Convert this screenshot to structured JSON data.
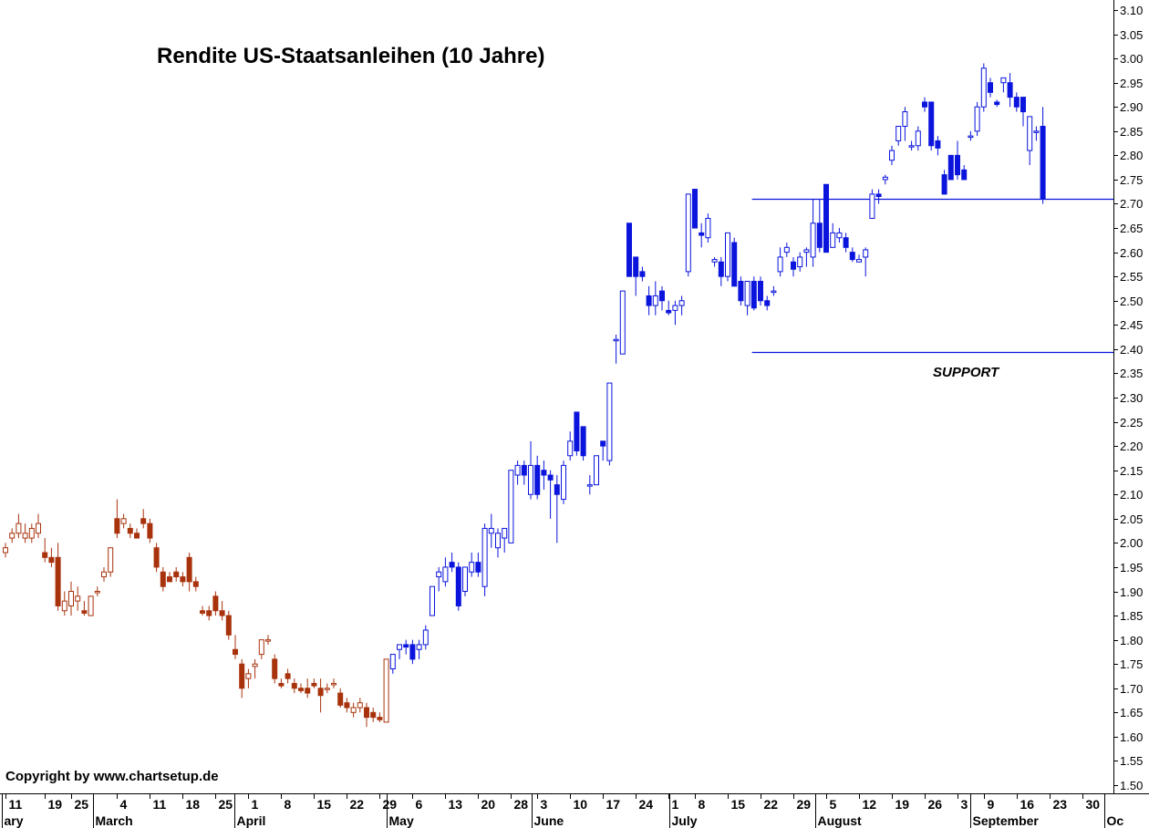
{
  "chart_data": {
    "type": "candlestick",
    "title": "Rendite US-Staatsanleihen  (10 Jahre)",
    "copyright": "Copyright by www.chartsetup.de",
    "annotation": "SUPPORT",
    "ylim": [
      1.5,
      3.1
    ],
    "y_ticks": [
      "1.50",
      "1.55",
      "1.60",
      "1.65",
      "1.70",
      "1.75",
      "1.80",
      "1.85",
      "1.90",
      "1.95",
      "2.00",
      "2.05",
      "2.10",
      "2.15",
      "2.20",
      "2.25",
      "2.30",
      "2.35",
      "2.40",
      "2.45",
      "2.50",
      "2.55",
      "2.60",
      "2.65",
      "2.70",
      "2.75",
      "2.80",
      "2.85",
      "2.90",
      "2.95",
      "3.00",
      "3.05",
      "3.10"
    ],
    "x_ticks": [
      {
        "label": "11",
        "day": 0
      },
      {
        "label": "19",
        "day": 6
      },
      {
        "label": "25",
        "day": 10
      },
      {
        "label": "4",
        "day": 17
      },
      {
        "label": "11",
        "day": 22
      },
      {
        "label": "18",
        "day": 27
      },
      {
        "label": "25",
        "day": 32
      },
      {
        "label": "1",
        "day": 37
      },
      {
        "label": "8",
        "day": 42
      },
      {
        "label": "15",
        "day": 47
      },
      {
        "label": "22",
        "day": 52
      },
      {
        "label": "29",
        "day": 57
      },
      {
        "label": "6",
        "day": 62
      },
      {
        "label": "13",
        "day": 67
      },
      {
        "label": "20",
        "day": 72
      },
      {
        "label": "28",
        "day": 77
      },
      {
        "label": "3",
        "day": 81
      },
      {
        "label": "10",
        "day": 86
      },
      {
        "label": "17",
        "day": 91
      },
      {
        "label": "24",
        "day": 96
      },
      {
        "label": "1",
        "day": 101
      },
      {
        "label": "8",
        "day": 105
      },
      {
        "label": "15",
        "day": 110
      },
      {
        "label": "22",
        "day": 115
      },
      {
        "label": "29",
        "day": 120
      },
      {
        "label": "5",
        "day": 125
      },
      {
        "label": "12",
        "day": 130
      },
      {
        "label": "19",
        "day": 135
      },
      {
        "label": "26",
        "day": 140
      },
      {
        "label": "3",
        "day": 145
      },
      {
        "label": "9",
        "day": 149
      },
      {
        "label": "16",
        "day": 154
      },
      {
        "label": "23",
        "day": 159
      },
      {
        "label": "30",
        "day": 164
      }
    ],
    "months": [
      {
        "label": "ary",
        "day": -0.6
      },
      {
        "label": "March",
        "day": 13.3
      },
      {
        "label": "April",
        "day": 34.9
      },
      {
        "label": "May",
        "day": 58.1
      },
      {
        "label": "June",
        "day": 80.2
      },
      {
        "label": "July",
        "day": 101.1
      },
      {
        "label": "August",
        "day": 123.4
      },
      {
        "label": "September",
        "day": 146.9
      },
      {
        "label": "Oc",
        "day": 167.4
      }
    ],
    "x_domain": [
      -1,
      168.5
    ],
    "hlines": [
      {
        "value": 2.71,
        "from_day": 113.7,
        "to_day": 168.5
      },
      {
        "value": 2.395,
        "from_day": 113.7,
        "to_day": 168.5
      }
    ],
    "colors": {
      "up": "#0a14dc",
      "down": "#0a14dc",
      "pre_may_down": "#a8320c",
      "pre_may_up": "#a8320c",
      "axis": "#000000",
      "line": "#0a14dc"
    },
    "color_switch_day": 59,
    "candles": [
      [
        0,
        1.98,
        2.0,
        1.97,
        1.99
      ],
      [
        1,
        2.01,
        2.03,
        2.0,
        2.02
      ],
      [
        2,
        2.02,
        2.06,
        2.01,
        2.04
      ],
      [
        3,
        2.01,
        2.04,
        2.0,
        2.02
      ],
      [
        4,
        2.01,
        2.04,
        2.0,
        2.03
      ],
      [
        5,
        2.02,
        2.06,
        2.01,
        2.04
      ],
      [
        6,
        1.98,
        2.01,
        1.96,
        1.97
      ],
      [
        7,
        1.97,
        1.99,
        1.95,
        1.96
      ],
      [
        8,
        1.97,
        2.0,
        1.86,
        1.87
      ],
      [
        9,
        1.86,
        1.9,
        1.85,
        1.88
      ],
      [
        10,
        1.87,
        1.92,
        1.85,
        1.9
      ],
      [
        11,
        1.88,
        1.91,
        1.86,
        1.89
      ],
      [
        12,
        1.86,
        1.88,
        1.85,
        1.855
      ],
      [
        13,
        1.85,
        1.89,
        1.85,
        1.89
      ],
      [
        14,
        1.9,
        1.91,
        1.89,
        1.9
      ],
      [
        15,
        1.93,
        1.95,
        1.92,
        1.94
      ],
      [
        16,
        1.94,
        1.99,
        1.93,
        1.99
      ],
      [
        17,
        2.05,
        2.09,
        2.01,
        2.02
      ],
      [
        18,
        2.04,
        2.06,
        2.03,
        2.05
      ],
      [
        19,
        2.03,
        2.04,
        2.01,
        2.02
      ],
      [
        20,
        2.02,
        2.03,
        2.01,
        2.01
      ],
      [
        21,
        2.05,
        2.07,
        2.03,
        2.04
      ],
      [
        22,
        2.04,
        2.05,
        2.0,
        2.01
      ],
      [
        23,
        1.99,
        2.0,
        1.94,
        1.95
      ],
      [
        24,
        1.94,
        1.95,
        1.9,
        1.91
      ],
      [
        25,
        1.93,
        1.94,
        1.92,
        1.92
      ],
      [
        26,
        1.94,
        1.95,
        1.92,
        1.93
      ],
      [
        27,
        1.93,
        1.94,
        1.91,
        1.92
      ],
      [
        28,
        1.97,
        1.98,
        1.9,
        1.92
      ],
      [
        29,
        1.92,
        1.93,
        1.9,
        1.91
      ],
      [
        30,
        1.86,
        1.87,
        1.85,
        1.855
      ],
      [
        31,
        1.86,
        1.87,
        1.84,
        1.85
      ],
      [
        32,
        1.89,
        1.9,
        1.85,
        1.86
      ],
      [
        33,
        1.86,
        1.88,
        1.84,
        1.85
      ],
      [
        34,
        1.85,
        1.86,
        1.8,
        1.81
      ],
      [
        35,
        1.78,
        1.81,
        1.76,
        1.77
      ],
      [
        36,
        1.75,
        1.76,
        1.68,
        1.7
      ],
      [
        37,
        1.72,
        1.74,
        1.7,
        1.73
      ],
      [
        38,
        1.745,
        1.76,
        1.72,
        1.75
      ],
      [
        39,
        1.77,
        1.8,
        1.76,
        1.8
      ],
      [
        40,
        1.8,
        1.81,
        1.79,
        1.8
      ],
      [
        41,
        1.76,
        1.77,
        1.71,
        1.72
      ],
      [
        42,
        1.71,
        1.72,
        1.7,
        1.705
      ],
      [
        43,
        1.73,
        1.74,
        1.71,
        1.72
      ],
      [
        44,
        1.71,
        1.72,
        1.69,
        1.7
      ],
      [
        45,
        1.7,
        1.71,
        1.69,
        1.695
      ],
      [
        46,
        1.7,
        1.72,
        1.68,
        1.69
      ],
      [
        47,
        1.71,
        1.72,
        1.7,
        1.705
      ],
      [
        48,
        1.7,
        1.72,
        1.65,
        1.685
      ],
      [
        49,
        1.7,
        1.71,
        1.69,
        1.7
      ],
      [
        50,
        1.71,
        1.72,
        1.7,
        1.71
      ],
      [
        51,
        1.69,
        1.7,
        1.66,
        1.665
      ],
      [
        52,
        1.67,
        1.68,
        1.65,
        1.66
      ],
      [
        53,
        1.65,
        1.67,
        1.64,
        1.66
      ],
      [
        54,
        1.66,
        1.68,
        1.65,
        1.67
      ],
      [
        55,
        1.66,
        1.67,
        1.62,
        1.64
      ],
      [
        56,
        1.65,
        1.66,
        1.63,
        1.64
      ],
      [
        57,
        1.64,
        1.65,
        1.63,
        1.635
      ],
      [
        58,
        1.63,
        1.76,
        1.63,
        1.76
      ],
      [
        59,
        1.74,
        1.77,
        1.73,
        1.77
      ],
      [
        60,
        1.78,
        1.79,
        1.76,
        1.79
      ],
      [
        61,
        1.79,
        1.8,
        1.77,
        1.785
      ],
      [
        62,
        1.79,
        1.8,
        1.75,
        1.76
      ],
      [
        63,
        1.78,
        1.8,
        1.76,
        1.79
      ],
      [
        64,
        1.79,
        1.83,
        1.78,
        1.82
      ],
      [
        65,
        1.85,
        1.91,
        1.85,
        1.91
      ],
      [
        66,
        1.93,
        1.95,
        1.9,
        1.94
      ],
      [
        67,
        1.92,
        1.97,
        1.91,
        1.95
      ],
      [
        68,
        1.96,
        1.98,
        1.94,
        1.95
      ],
      [
        69,
        1.95,
        1.96,
        1.86,
        1.87
      ],
      [
        70,
        1.9,
        1.95,
        1.89,
        1.95
      ],
      [
        71,
        1.94,
        1.98,
        1.93,
        1.96
      ],
      [
        72,
        1.96,
        1.98,
        1.93,
        1.94
      ],
      [
        73,
        1.91,
        2.04,
        1.89,
        2.03
      ],
      [
        74,
        2.02,
        2.06,
        1.99,
        2.03
      ],
      [
        75,
        1.99,
        2.03,
        1.97,
        2.02
      ],
      [
        76,
        2.01,
        2.03,
        1.98,
        2.03
      ],
      [
        77,
        2.0,
        2.15,
        2.0,
        2.15
      ],
      [
        78,
        2.14,
        2.17,
        2.12,
        2.16
      ],
      [
        79,
        2.16,
        2.17,
        2.12,
        2.14
      ],
      [
        80,
        2.1,
        2.21,
        2.09,
        2.16
      ],
      [
        81,
        2.16,
        2.18,
        2.09,
        2.1
      ],
      [
        82,
        2.15,
        2.17,
        2.11,
        2.14
      ],
      [
        83,
        2.14,
        2.15,
        2.05,
        2.13
      ],
      [
        84,
        2.12,
        2.14,
        2.0,
        2.1
      ],
      [
        85,
        2.09,
        2.17,
        2.08,
        2.16
      ],
      [
        86,
        2.18,
        2.23,
        2.17,
        2.21
      ],
      [
        87,
        2.27,
        2.27,
        2.18,
        2.19
      ],
      [
        88,
        2.24,
        2.24,
        2.17,
        2.18
      ],
      [
        89,
        2.12,
        2.14,
        2.1,
        2.12
      ],
      [
        90,
        2.12,
        2.18,
        2.12,
        2.18
      ],
      [
        91,
        2.21,
        2.21,
        2.17,
        2.2
      ],
      [
        92,
        2.17,
        2.33,
        2.16,
        2.33
      ],
      [
        93,
        2.42,
        2.43,
        2.37,
        2.42
      ],
      [
        94,
        2.39,
        2.52,
        2.39,
        2.52
      ],
      [
        95,
        2.66,
        2.66,
        2.55,
        2.55
      ],
      [
        96,
        2.59,
        2.59,
        2.51,
        2.55
      ],
      [
        97,
        2.56,
        2.57,
        2.54,
        2.55
      ],
      [
        98,
        2.51,
        2.53,
        2.47,
        2.49
      ],
      [
        99,
        2.49,
        2.54,
        2.47,
        2.51
      ],
      [
        100,
        2.52,
        2.53,
        2.48,
        2.5
      ],
      [
        101,
        2.48,
        2.5,
        2.47,
        2.475
      ],
      [
        102,
        2.48,
        2.5,
        2.45,
        2.49
      ],
      [
        103,
        2.49,
        2.51,
        2.47,
        2.5
      ],
      [
        104,
        2.56,
        2.72,
        2.55,
        2.72
      ],
      [
        105,
        2.73,
        2.73,
        2.65,
        2.65
      ],
      [
        106,
        2.64,
        2.66,
        2.61,
        2.635
      ],
      [
        107,
        2.63,
        2.68,
        2.62,
        2.67
      ],
      [
        108,
        2.58,
        2.59,
        2.57,
        2.585
      ],
      [
        109,
        2.58,
        2.59,
        2.53,
        2.55
      ],
      [
        110,
        2.55,
        2.64,
        2.54,
        2.64
      ],
      [
        111,
        2.62,
        2.63,
        2.53,
        2.53
      ],
      [
        112,
        2.54,
        2.55,
        2.49,
        2.5
      ],
      [
        113,
        2.49,
        2.54,
        2.47,
        2.54
      ],
      [
        114,
        2.54,
        2.55,
        2.48,
        2.485
      ],
      [
        115,
        2.54,
        2.55,
        2.49,
        2.5
      ],
      [
        116,
        2.5,
        2.51,
        2.48,
        2.49
      ],
      [
        117,
        2.52,
        2.53,
        2.51,
        2.52
      ],
      [
        118,
        2.56,
        2.61,
        2.55,
        2.59
      ],
      [
        119,
        2.6,
        2.62,
        2.59,
        2.61
      ],
      [
        120,
        2.58,
        2.59,
        2.55,
        2.565
      ],
      [
        121,
        2.57,
        2.6,
        2.56,
        2.59
      ],
      [
        122,
        2.6,
        2.61,
        2.57,
        2.605
      ],
      [
        123,
        2.59,
        2.71,
        2.57,
        2.66
      ],
      [
        124,
        2.66,
        2.71,
        2.6,
        2.61
      ],
      [
        125,
        2.74,
        2.74,
        2.6,
        2.6
      ],
      [
        126,
        2.61,
        2.66,
        2.61,
        2.64
      ],
      [
        127,
        2.63,
        2.65,
        2.62,
        2.64
      ],
      [
        128,
        2.63,
        2.64,
        2.6,
        2.61
      ],
      [
        129,
        2.6,
        2.61,
        2.58,
        2.585
      ],
      [
        130,
        2.58,
        2.595,
        2.58,
        2.585
      ],
      [
        131,
        2.59,
        2.61,
        2.55,
        2.605
      ],
      [
        132,
        2.67,
        2.73,
        2.67,
        2.72
      ],
      [
        133,
        2.72,
        2.73,
        2.7,
        2.715
      ],
      [
        134,
        2.75,
        2.76,
        2.74,
        2.755
      ],
      [
        135,
        2.79,
        2.82,
        2.78,
        2.81
      ],
      [
        136,
        2.83,
        2.86,
        2.82,
        2.86
      ],
      [
        137,
        2.86,
        2.9,
        2.83,
        2.89
      ],
      [
        138,
        2.82,
        2.83,
        2.81,
        2.82
      ],
      [
        139,
        2.82,
        2.86,
        2.81,
        2.85
      ],
      [
        140,
        2.91,
        2.92,
        2.89,
        2.9
      ],
      [
        141,
        2.91,
        2.91,
        2.81,
        2.82
      ],
      [
        142,
        2.83,
        2.84,
        2.8,
        2.815
      ],
      [
        143,
        2.76,
        2.77,
        2.72,
        2.72
      ],
      [
        144,
        2.8,
        2.8,
        2.75,
        2.75
      ],
      [
        145,
        2.8,
        2.83,
        2.75,
        2.76
      ],
      [
        146,
        2.77,
        2.78,
        2.75,
        2.75
      ],
      [
        147,
        2.84,
        2.85,
        2.83,
        2.84
      ],
      [
        148,
        2.85,
        2.91,
        2.84,
        2.9
      ],
      [
        149,
        2.9,
        2.99,
        2.89,
        2.98
      ],
      [
        150,
        2.95,
        2.96,
        2.92,
        2.93
      ],
      [
        151,
        2.91,
        2.915,
        2.9,
        2.905
      ],
      [
        152,
        2.95,
        2.96,
        2.93,
        2.96
      ],
      [
        153,
        2.95,
        2.97,
        2.9,
        2.92
      ],
      [
        154,
        2.92,
        2.93,
        2.89,
        2.9
      ],
      [
        155,
        2.92,
        2.92,
        2.86,
        2.89
      ],
      [
        156,
        2.81,
        2.88,
        2.78,
        2.88
      ],
      [
        157,
        2.85,
        2.86,
        2.83,
        2.85
      ],
      [
        158,
        2.86,
        2.9,
        2.7,
        2.71
      ]
    ]
  }
}
